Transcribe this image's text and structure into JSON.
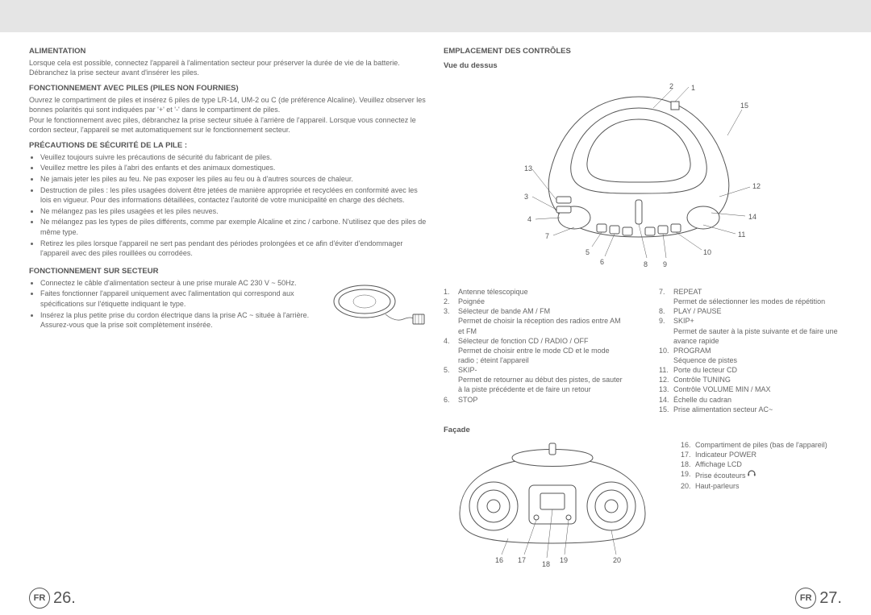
{
  "left": {
    "h1": "ALIMENTATION",
    "p1": "Lorsque cela est possible, connectez l'appareil à l'alimentation secteur pour préserver la durée de vie de la batterie. Débranchez la prise secteur avant d'insérer les piles.",
    "h2": "FONCTIONNEMENT AVEC PILES (PILES NON FOURNIES)",
    "p2": "Ouvrez le compartiment de piles et insérez 6 piles de type LR-14, UM-2 ou C (de préférence Alcaline). Veuillez observer les bonnes polarités qui sont indiquées par '+' et '-' dans le compartiment de piles.",
    "p3": "Pour le fonctionnement avec piles, débranchez la prise secteur située à l'arrière de l'appareil. Lorsque vous connectez le cordon secteur, l'appareil se met automatiquement sur le fonctionnement secteur.",
    "h3": "PRÉCAUTIONS DE SÉCURITÉ DE LA PILE :",
    "precautions": [
      "Veuillez toujours suivre les précautions de sécurité du fabricant de piles.",
      "Veuillez mettre les piles à l'abri des enfants et des animaux domestiques.",
      "Ne jamais jeter les piles au feu. Ne pas exposer les piles au feu ou à d'autres sources de chaleur.",
      "Destruction de piles : les piles usagées doivent être jetées de manière appropriée et recyclées en conformité avec les lois en vigueur. Pour des informations détaillées, contactez l'autorité de votre municipalité en charge des déchets.",
      "Ne mélangez pas les piles usagées et les piles neuves.",
      "Ne mélangez pas les types de piles différents, comme par exemple Alcaline et zinc / carbone. N'utilisez que des piles de même type.",
      "Retirez les piles lorsque l'appareil ne sert pas pendant des périodes prolongées et ce afin d'éviter d'endommager l'appareil avec des piles rouillées ou corrodées."
    ],
    "h4": "FONCTIONNEMENT SUR SECTEUR",
    "secteur": [
      "Connectez le câble d'alimentation secteur à une prise murale AC 230 V ~ 50Hz.",
      "Faites fonctionner l'appareil uniquement avec l'alimentation qui correspond aux spécifications sur l'étiquette indiquant le type.",
      "Insérez la plus petite prise du cordon électrique dans la prise AC ~ située à l'arrière. Assurez-vous que la prise soit complètement insérée."
    ]
  },
  "right": {
    "h1": "EMPLACEMENT DES CONTRÔLES",
    "sh1": "Vue du dessus",
    "controls_left": [
      {
        "n": "1.",
        "t": "Antenne télescopique"
      },
      {
        "n": "2.",
        "t": "Poignée"
      },
      {
        "n": "3.",
        "t": "Sélecteur de bande AM / FM"
      },
      {
        "n": "",
        "t": "Permet de choisir la réception des radios entre AM et FM"
      },
      {
        "n": "4.",
        "t": "Sélecteur de fonction CD / RADIO / OFF"
      },
      {
        "n": "",
        "t": "Permet de choisir entre le mode CD et le mode radio ; éteint l'appareil"
      },
      {
        "n": "5.",
        "t": "SKIP-"
      },
      {
        "n": "",
        "t": "Permet de retourner au début des pistes, de sauter à la piste précédente et de faire un retour"
      },
      {
        "n": "6.",
        "t": "STOP"
      }
    ],
    "controls_right": [
      {
        "n": "7.",
        "t": "REPEAT"
      },
      {
        "n": "",
        "t": "Permet de sélectionner les modes de répétition"
      },
      {
        "n": "8.",
        "t": "PLAY / PAUSE"
      },
      {
        "n": "9.",
        "t": "SKIP+"
      },
      {
        "n": "",
        "t": "Permet de sauter à la piste suivante et de faire une avance rapide"
      },
      {
        "n": "10.",
        "t": "PROGRAM"
      },
      {
        "n": "",
        "t": "Séquence de pistes"
      },
      {
        "n": "11.",
        "t": "Porte du lecteur CD"
      },
      {
        "n": "12.",
        "t": "Contrôle TUNING"
      },
      {
        "n": "13.",
        "t": "Contrôle VOLUME MIN / MAX"
      },
      {
        "n": "14.",
        "t": "Échelle du cadran"
      },
      {
        "n": "15.",
        "t": "Prise alimentation secteur AC~"
      }
    ],
    "sh2": "Façade",
    "front_labels": [
      {
        "n": "16.",
        "t": "Compartiment de piles (bas de l'appareil)"
      },
      {
        "n": "17.",
        "t": "Indicateur POWER"
      },
      {
        "n": "18.",
        "t": "Affichage LCD"
      },
      {
        "n": "19.",
        "t": "Prise écouteurs"
      },
      {
        "n": "20.",
        "t": "Haut-parleurs"
      }
    ]
  },
  "footer": {
    "lang": "FR",
    "leftPage": "26.",
    "rightPage": "27."
  }
}
